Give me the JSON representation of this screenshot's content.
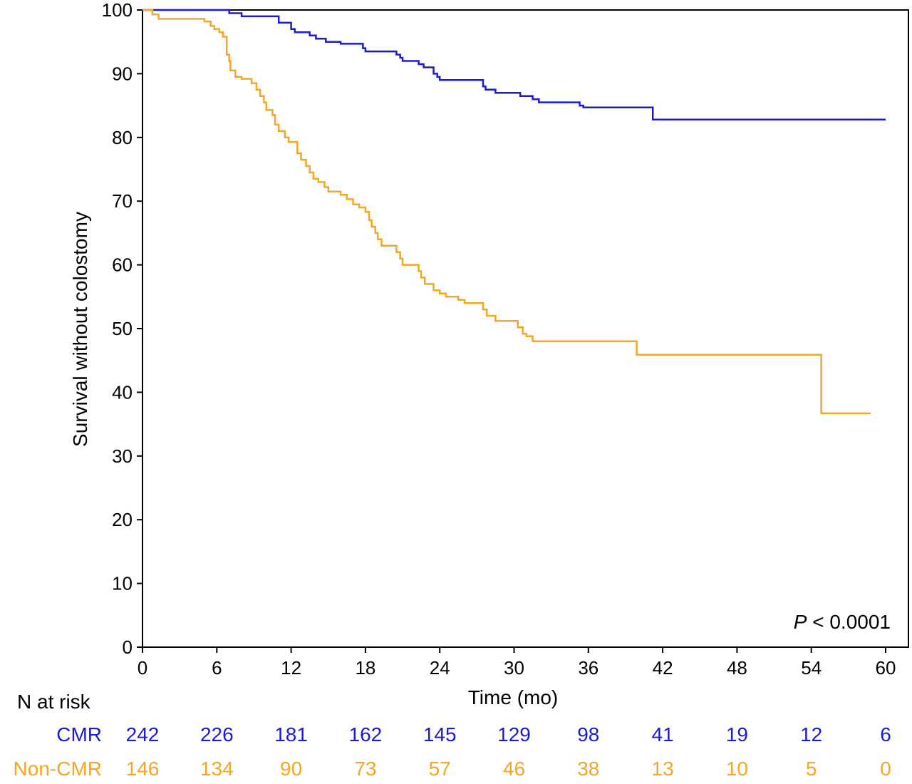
{
  "chart_data": {
    "type": "line",
    "step": true,
    "xlabel": "Time (mo)",
    "ylabel": "Survival without colostomy",
    "xlim": [
      0,
      60
    ],
    "ylim": [
      0,
      100
    ],
    "xticks": [
      0,
      6,
      12,
      18,
      24,
      30,
      36,
      42,
      48,
      54,
      60
    ],
    "yticks": [
      0,
      10,
      20,
      30,
      40,
      50,
      60,
      70,
      80,
      90,
      100
    ],
    "grid": false,
    "annotation": {
      "italic": "P",
      "rest": " < 0.0001"
    },
    "series": [
      {
        "name": "CMR",
        "color": "#1a1adb",
        "points": [
          [
            0,
            100
          ],
          [
            7,
            99.5
          ],
          [
            8,
            99
          ],
          [
            11,
            98
          ],
          [
            12,
            97
          ],
          [
            12.3,
            96.5
          ],
          [
            13.5,
            96
          ],
          [
            14,
            95.5
          ],
          [
            14.8,
            95
          ],
          [
            16,
            94.7
          ],
          [
            17.8,
            94
          ],
          [
            18,
            93.5
          ],
          [
            20.5,
            93
          ],
          [
            20.8,
            92.5
          ],
          [
            21,
            92
          ],
          [
            22.3,
            91.5
          ],
          [
            22.7,
            91
          ],
          [
            23.5,
            90
          ],
          [
            23.8,
            89.5
          ],
          [
            24,
            89
          ],
          [
            27.5,
            88
          ],
          [
            27.7,
            87.5
          ],
          [
            28.5,
            87
          ],
          [
            30.5,
            86.5
          ],
          [
            31.5,
            86
          ],
          [
            32,
            85.5
          ],
          [
            35.3,
            85
          ],
          [
            35.6,
            84.7
          ],
          [
            41.2,
            82.8
          ],
          [
            60,
            82.8
          ]
        ]
      },
      {
        "name": "Non-CMR",
        "color": "#f5a623",
        "points": [
          [
            0,
            100
          ],
          [
            0.8,
            99.3
          ],
          [
            1.3,
            98.6
          ],
          [
            5,
            98.2
          ],
          [
            5.5,
            97.5
          ],
          [
            5.8,
            97
          ],
          [
            6.2,
            96.5
          ],
          [
            6.5,
            95.8
          ],
          [
            6.8,
            93
          ],
          [
            7,
            92
          ],
          [
            7.1,
            90.5
          ],
          [
            7.5,
            89.5
          ],
          [
            8,
            89.2
          ],
          [
            8.8,
            88.5
          ],
          [
            9.2,
            87.5
          ],
          [
            9.5,
            86.5
          ],
          [
            9.8,
            85.5
          ],
          [
            10,
            84.3
          ],
          [
            10.5,
            83.5
          ],
          [
            10.7,
            82
          ],
          [
            11,
            81
          ],
          [
            11.5,
            80
          ],
          [
            11.8,
            79.3
          ],
          [
            12.5,
            77.5
          ],
          [
            12.8,
            76.5
          ],
          [
            13.2,
            75.5
          ],
          [
            13.5,
            74.5
          ],
          [
            13.8,
            73.5
          ],
          [
            14.2,
            73
          ],
          [
            14.7,
            72.2
          ],
          [
            15,
            71.5
          ],
          [
            16,
            71
          ],
          [
            16.5,
            70.3
          ],
          [
            17,
            69.5
          ],
          [
            17.5,
            69
          ],
          [
            18,
            68.3
          ],
          [
            18.3,
            67
          ],
          [
            18.5,
            66
          ],
          [
            18.8,
            65
          ],
          [
            19,
            64
          ],
          [
            19.3,
            63
          ],
          [
            20.5,
            62
          ],
          [
            20.8,
            61
          ],
          [
            21,
            60
          ],
          [
            22.3,
            59
          ],
          [
            22.5,
            58
          ],
          [
            22.8,
            57
          ],
          [
            23.5,
            56
          ],
          [
            24,
            55.5
          ],
          [
            24.5,
            55
          ],
          [
            25.5,
            54.5
          ],
          [
            26,
            54
          ],
          [
            27.5,
            53
          ],
          [
            27.8,
            52
          ],
          [
            28.5,
            51.2
          ],
          [
            30.3,
            50.2
          ],
          [
            30.7,
            49.2
          ],
          [
            31,
            48.8
          ],
          [
            31.5,
            48
          ],
          [
            39.9,
            45.9
          ],
          [
            54.8,
            36.7
          ],
          [
            58.8,
            36.7
          ]
        ]
      }
    ],
    "at_risk": {
      "title": "N at risk",
      "times": [
        0,
        6,
        12,
        18,
        24,
        30,
        36,
        42,
        48,
        54,
        60
      ],
      "rows": [
        {
          "label": "CMR",
          "color": "#1a1adb",
          "values": [
            242,
            226,
            181,
            162,
            145,
            129,
            98,
            41,
            19,
            12,
            6
          ]
        },
        {
          "label": "Non-CMR",
          "color": "#f5a623",
          "values": [
            146,
            134,
            90,
            73,
            57,
            46,
            38,
            13,
            10,
            5,
            0
          ]
        }
      ]
    }
  }
}
